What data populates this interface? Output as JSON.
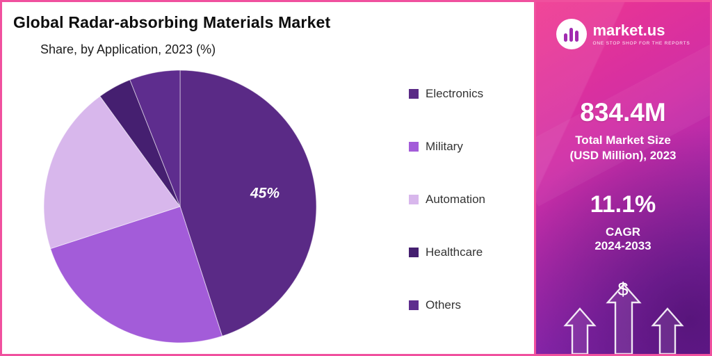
{
  "header": {
    "title": "Global Radar-absorbing Materials Market",
    "subtitle": "Share, by Application, 2023 (%)"
  },
  "chart_data": {
    "type": "pie",
    "title": "Global Radar-absorbing Materials Market",
    "subtitle": "Share, by Application, 2023 (%)",
    "unit": "%",
    "year": "2023",
    "legend_position": "right",
    "direction": "clockwise",
    "start_angle_deg": 0,
    "slices": [
      {
        "label": "Electronics",
        "value": 45,
        "color": "#5a2a86",
        "data_label": "45%"
      },
      {
        "label": "Military",
        "value": 25,
        "color": "#a35cd9",
        "data_label": ""
      },
      {
        "label": "Automation",
        "value": 20,
        "color": "#d8b7ec",
        "data_label": ""
      },
      {
        "label": "Healthcare",
        "value": 4,
        "color": "#451f70",
        "data_label": ""
      },
      {
        "label": "Others",
        "value": 6,
        "color": "#5e2d8e",
        "data_label": ""
      }
    ]
  },
  "sidebar": {
    "brand": {
      "name": "market.us",
      "tagline": "ONE STOP SHOP FOR THE REPORTS"
    },
    "market_size": {
      "value": "834.4M",
      "label_line1": "Total Market Size",
      "label_line2": "(USD Million), 2023"
    },
    "cagr": {
      "value": "11.1%",
      "label_line1": "CAGR",
      "label_line2": "2024-2033"
    },
    "dollar_symbol": "$",
    "colors": {
      "border_pink": "#f0509e",
      "gradient_top": "#f0368f",
      "gradient_bottom": "#7b22a9"
    }
  }
}
